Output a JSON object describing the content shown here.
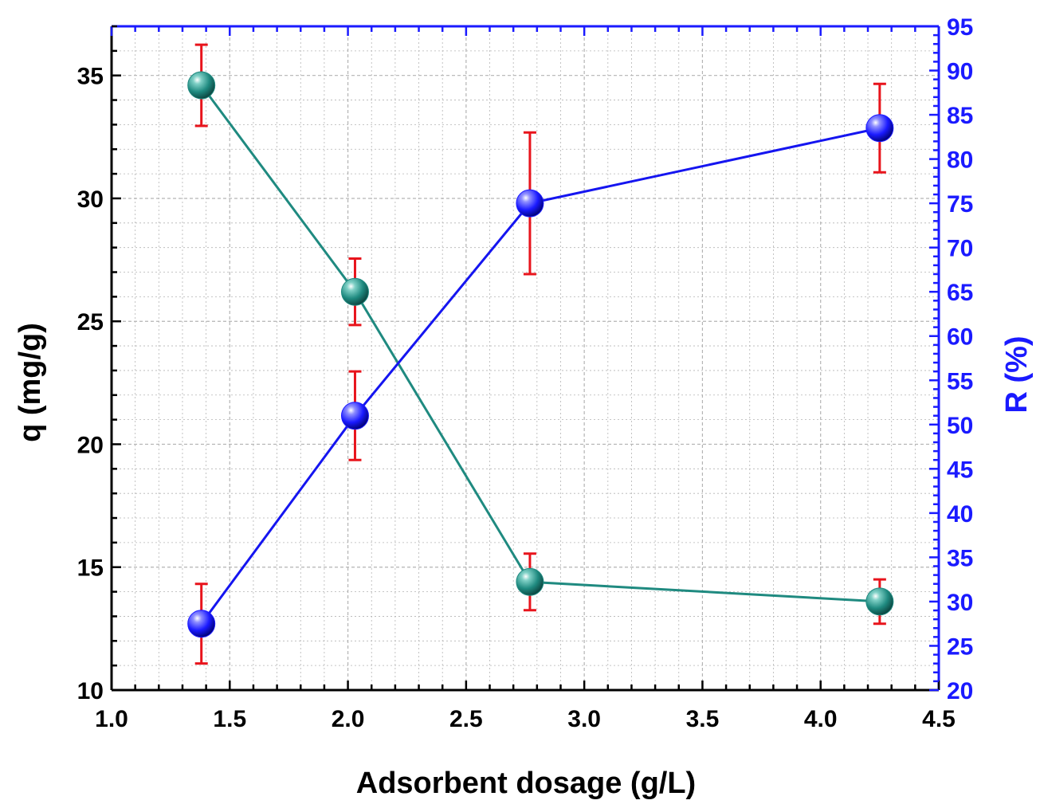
{
  "chart_data": {
    "type": "line",
    "title": "",
    "xlabel": "Adsorbent dosage (g/L)",
    "ylabel": "q (mg/g)",
    "y2label": "R (%)",
    "xlim": [
      1.0,
      4.5
    ],
    "ylim": [
      10,
      37
    ],
    "y2lim": [
      20,
      95
    ],
    "grid": true,
    "x_ticks": [
      "1.0",
      "1.5",
      "2.0",
      "2.5",
      "3.0",
      "3.5",
      "4.0",
      "4.5"
    ],
    "y_ticks": [
      "10",
      "15",
      "20",
      "25",
      "30",
      "35"
    ],
    "y2_ticks": [
      "20",
      "25",
      "30",
      "35",
      "40",
      "45",
      "50",
      "55",
      "60",
      "65",
      "70",
      "75",
      "80",
      "85",
      "90",
      "95"
    ],
    "series": [
      {
        "name": "q",
        "axis": "left",
        "color": "#1f8a80",
        "line_color": "#1f8a80",
        "x": [
          1.38,
          2.03,
          2.77,
          4.25
        ],
        "values": [
          34.6,
          26.2,
          14.4,
          13.6
        ],
        "error": [
          1.65,
          1.35,
          1.15,
          0.9
        ]
      },
      {
        "name": "R",
        "axis": "right",
        "color": "#1a1aff",
        "line_color": "#1515f0",
        "x": [
          1.38,
          2.03,
          2.77,
          4.25
        ],
        "values": [
          27.5,
          51.0,
          75.0,
          83.5
        ],
        "error": [
          4.5,
          5.0,
          8.0,
          5.0
        ]
      }
    ],
    "colors": {
      "left_axis": "#000000",
      "right_axis": "#1a1aff",
      "error_bar": "#e8141c",
      "grid": "#b4b4b4"
    }
  }
}
